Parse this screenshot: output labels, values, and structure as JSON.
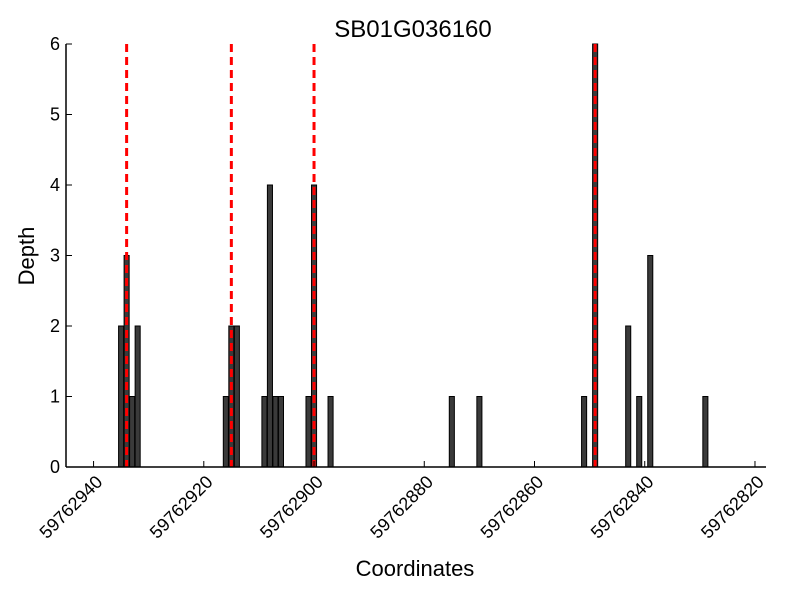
{
  "chart_data": {
    "type": "bar",
    "title": "SB01G036160",
    "xlabel": "Coordinates",
    "ylabel": "Depth",
    "x_reversed": true,
    "xlim": [
      59762945,
      59762818
    ],
    "ylim": [
      0,
      6
    ],
    "xticks": [
      59762940,
      59762920,
      59762900,
      59762880,
      59762860,
      59762840,
      59762820
    ],
    "xtick_labels": [
      "59762940",
      "59762920",
      "59762900",
      "59762880",
      "59762860",
      "59762840",
      "59762820"
    ],
    "yticks": [
      0,
      1,
      2,
      3,
      4,
      5,
      6
    ],
    "ytick_labels": [
      "0",
      "1",
      "2",
      "3",
      "4",
      "5",
      "6"
    ],
    "bars": [
      {
        "x": 59762935,
        "y": 2
      },
      {
        "x": 59762934,
        "y": 3
      },
      {
        "x": 59762933,
        "y": 1
      },
      {
        "x": 59762932,
        "y": 2
      },
      {
        "x": 59762916,
        "y": 1
      },
      {
        "x": 59762915,
        "y": 2
      },
      {
        "x": 59762914,
        "y": 2
      },
      {
        "x": 59762909,
        "y": 1
      },
      {
        "x": 59762908,
        "y": 4
      },
      {
        "x": 59762907,
        "y": 1
      },
      {
        "x": 59762906,
        "y": 1
      },
      {
        "x": 59762901,
        "y": 1
      },
      {
        "x": 59762900,
        "y": 4
      },
      {
        "x": 59762897,
        "y": 1
      },
      {
        "x": 59762875,
        "y": 1
      },
      {
        "x": 59762870,
        "y": 1
      },
      {
        "x": 59762851,
        "y": 1
      },
      {
        "x": 59762849,
        "y": 6
      },
      {
        "x": 59762843,
        "y": 2
      },
      {
        "x": 59762841,
        "y": 1
      },
      {
        "x": 59762839,
        "y": 3
      },
      {
        "x": 59762829,
        "y": 1
      }
    ],
    "markers": [
      59762934,
      59762915,
      59762900,
      59762849
    ],
    "colors": {
      "bar_fill": "#3a3a3a",
      "bar_edge": "#000000",
      "marker": "#ff0000"
    },
    "grid": false,
    "legend": "none"
  }
}
